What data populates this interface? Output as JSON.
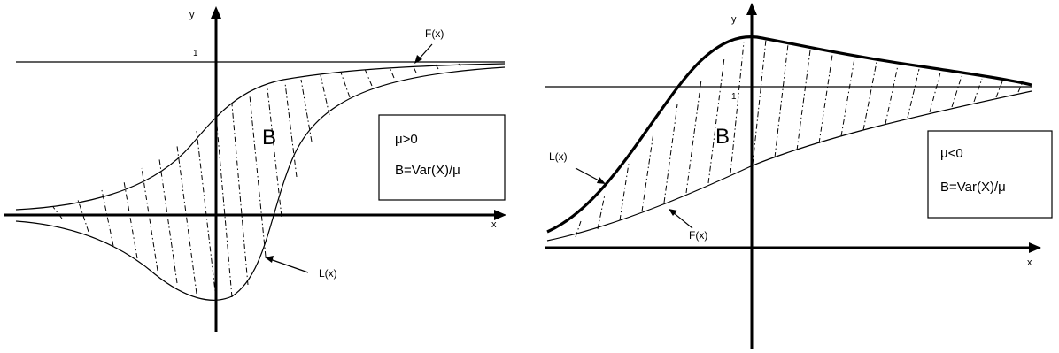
{
  "figure_left": {
    "axis_x_label": "x",
    "axis_y_label": "y",
    "level_label": "1",
    "region_label": "B",
    "curve_f_label": "F(x)",
    "curve_l_label": "L(x)",
    "box_line1": "μ>0",
    "box_line2": "B=Var(X)/μ"
  },
  "figure_right": {
    "axis_x_label": "x",
    "axis_y_label": "y",
    "level_label": "1",
    "region_label": "B",
    "curve_f_label": "F(x)",
    "curve_l_label": "L(x)",
    "box_line1": "μ<0",
    "box_line2": "B=Var(X)/μ"
  },
  "colors": {
    "ink": "#000000",
    "background": "#ffffff"
  }
}
